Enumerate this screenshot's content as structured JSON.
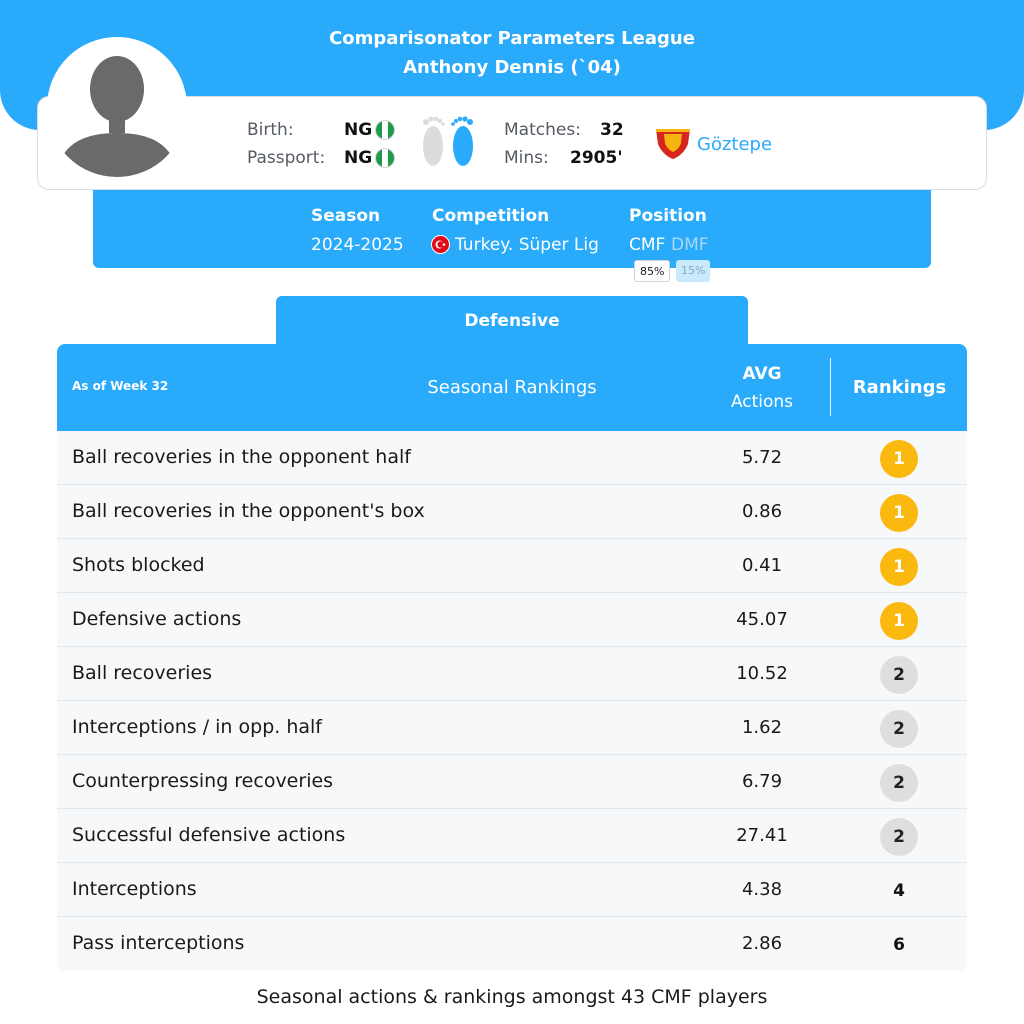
{
  "header": {
    "league_title": "Comparisonator Parameters League",
    "player_title": "Anthony Dennis (`04)"
  },
  "profile": {
    "birth_label": "Birth:",
    "birth_value": "NG",
    "passport_label": "Passport:",
    "passport_value": "NG",
    "matches_label": "Matches:",
    "matches_value": "32",
    "mins_label": "Mins:",
    "mins_value": "2905'",
    "club": "Göztepe",
    "preferred_foot": "right"
  },
  "season_info": {
    "season_label": "Season",
    "season_value": "2024-2025",
    "competition_label": "Competition",
    "competition_value": "Turkey. Süper Lig",
    "position_label": "Position",
    "positions": [
      {
        "name": "CMF",
        "pct": "85%"
      },
      {
        "name": "DMF",
        "pct": "15%"
      }
    ]
  },
  "tab": {
    "label": "Defensive"
  },
  "table": {
    "week_label": "As of Week 32",
    "seasonal_label": "Seasonal Rankings",
    "avg_label": "AVG",
    "actions_label": "Actions",
    "rankings_label": "Rankings",
    "rows": [
      {
        "label": "Ball recoveries in the opponent half",
        "avg": "5.72",
        "rank": "1"
      },
      {
        "label": "Ball recoveries in the opponent's box",
        "avg": "0.86",
        "rank": "1"
      },
      {
        "label": "Shots blocked",
        "avg": "0.41",
        "rank": "1"
      },
      {
        "label": "Defensive actions",
        "avg": "45.07",
        "rank": "1"
      },
      {
        "label": "Ball recoveries",
        "avg": "10.52",
        "rank": "2"
      },
      {
        "label": "Interceptions / in opp. half",
        "avg": "1.62",
        "rank": "2"
      },
      {
        "label": "Counterpressing recoveries",
        "avg": "6.79",
        "rank": "2"
      },
      {
        "label": "Successful defensive actions",
        "avg": "27.41",
        "rank": "2"
      },
      {
        "label": "Interceptions",
        "avg": "4.38",
        "rank": "4"
      },
      {
        "label": "Pass interceptions",
        "avg": "2.86",
        "rank": "6"
      }
    ]
  },
  "footer": {
    "note": "Seasonal actions & rankings amongst 43 CMF players"
  },
  "colors": {
    "accent": "#29aafb",
    "gold": "#fbb90f",
    "silver": "#dedede",
    "club_red": "#d7261e",
    "club_yellow": "#f6b511"
  }
}
